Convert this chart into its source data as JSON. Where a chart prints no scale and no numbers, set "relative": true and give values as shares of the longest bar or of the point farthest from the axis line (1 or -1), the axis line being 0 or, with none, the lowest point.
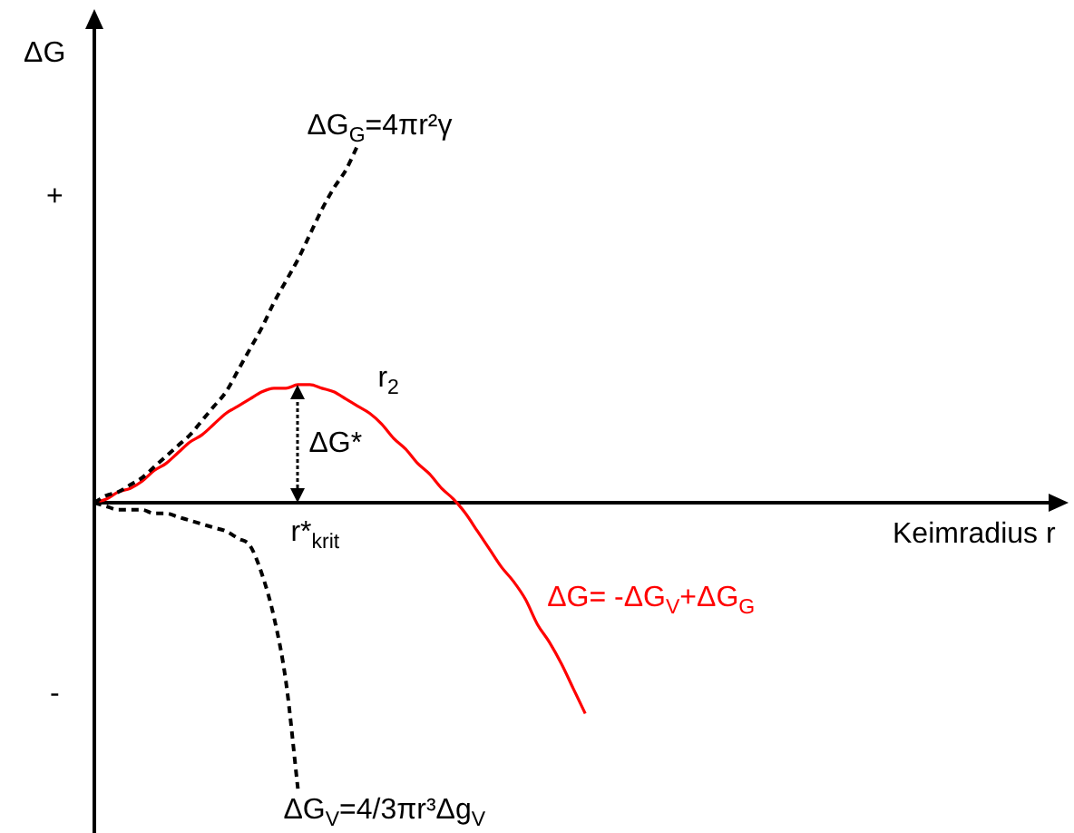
{
  "chart_data": {
    "type": "line",
    "relative": true,
    "ylabel": "ΔG",
    "xlabel": "Keimradius r",
    "legend": false,
    "grid": false,
    "marker": "none",
    "categories": [
      null,
      null,
      null,
      null,
      null,
      null,
      null,
      null,
      null,
      null,
      null,
      null,
      null,
      null,
      null,
      null,
      null,
      null,
      null,
      null,
      null,
      null,
      null,
      null,
      null,
      null,
      null,
      null,
      null,
      null,
      null,
      null,
      null,
      null,
      null,
      null,
      null,
      null,
      null,
      null,
      null,
      null,
      null,
      null,
      null,
      null,
      null,
      null,
      null,
      null,
      null,
      null,
      null,
      null,
      null,
      null,
      null,
      null,
      null,
      null,
      null,
      null,
      null,
      null,
      null,
      null,
      null,
      null,
      null,
      null,
      null,
      null,
      null,
      null,
      null,
      null,
      null,
      null,
      null,
      null,
      null
    ],
    "series": [
      {
        "name": "ΔG$_{G}$=4πr²γ",
        "color": "#000000",
        "line_style": "dashed",
        "values": [
          0,
          0.02,
          0.03,
          0.05,
          0.07,
          0.1,
          0.13,
          0.16,
          0.19,
          0.23,
          0.27,
          0.31,
          0.37,
          0.43,
          0.49,
          0.56,
          0.62,
          0.68,
          0.75,
          0.82,
          0.88,
          0.93,
          1,
          null,
          null,
          null,
          null,
          null,
          null,
          null,
          null,
          null,
          null,
          null,
          null,
          null,
          null,
          null,
          null,
          null,
          null,
          null,
          null,
          null,
          null,
          null,
          null,
          null,
          null,
          null,
          null,
          null,
          null,
          null,
          null,
          null,
          null,
          null,
          null,
          null,
          null,
          null,
          null,
          null,
          null,
          null,
          null,
          null,
          null,
          null,
          null,
          null,
          null,
          null,
          null,
          null,
          null,
          null,
          null,
          null,
          null
        ]
      },
      {
        "name": "ΔG$_{V}$=4/3πr³Δg$_{V}$",
        "color": "#000000",
        "line_style": "dashed",
        "values": [
          0,
          -0.01,
          -0.02,
          -0.02,
          -0.02,
          -0.03,
          -0.03,
          -0.04,
          -0.05,
          -0.06,
          -0.07,
          -0.08,
          -0.1,
          -0.12,
          -0.2,
          -0.32,
          -0.5,
          -0.8,
          null,
          null,
          null,
          null,
          null,
          null,
          null,
          null,
          null,
          null,
          null,
          null,
          null,
          null,
          null,
          null,
          null,
          null,
          null,
          null,
          null,
          null,
          null,
          null,
          null,
          null,
          null,
          null,
          null,
          null,
          null,
          null,
          null,
          null,
          null,
          null,
          null,
          null,
          null,
          null,
          null,
          null,
          null,
          null,
          null,
          null,
          null,
          null,
          null,
          null,
          null,
          null,
          null,
          null,
          null,
          null,
          null,
          null,
          null,
          null,
          null,
          null,
          null
        ]
      },
      {
        "name": "ΔG= -ΔG$_{V}$+ΔG$_{G}$",
        "color": "#ff0000",
        "line_style": "solid",
        "values": [
          0,
          0.01,
          0.03,
          0.04,
          0.06,
          0.09,
          0.11,
          0.14,
          0.17,
          0.19,
          0.22,
          0.25,
          0.27,
          0.29,
          0.31,
          0.32,
          0.32,
          0.33,
          0.33,
          0.32,
          0.31,
          0.29,
          0.27,
          0.25,
          0.22,
          0.18,
          0.15,
          0.11,
          0.08,
          0.04,
          0.01,
          -0.03,
          -0.08,
          -0.13,
          -0.18,
          -0.22,
          -0.27,
          -0.34,
          -0.39,
          -0.45,
          -0.52,
          -0.59,
          null,
          null,
          null,
          null,
          null,
          null,
          null,
          null,
          null,
          null,
          null,
          null,
          null,
          null,
          null,
          null,
          null,
          null,
          null,
          null,
          null,
          null,
          null,
          null,
          null,
          null,
          null,
          null,
          null,
          null,
          null,
          null,
          null,
          null,
          null,
          null,
          null,
          null,
          null
        ]
      }
    ],
    "annotations": [
      "+",
      "-",
      "r$_{2}$",
      "ΔG*",
      "r*$_{krit}$"
    ]
  }
}
